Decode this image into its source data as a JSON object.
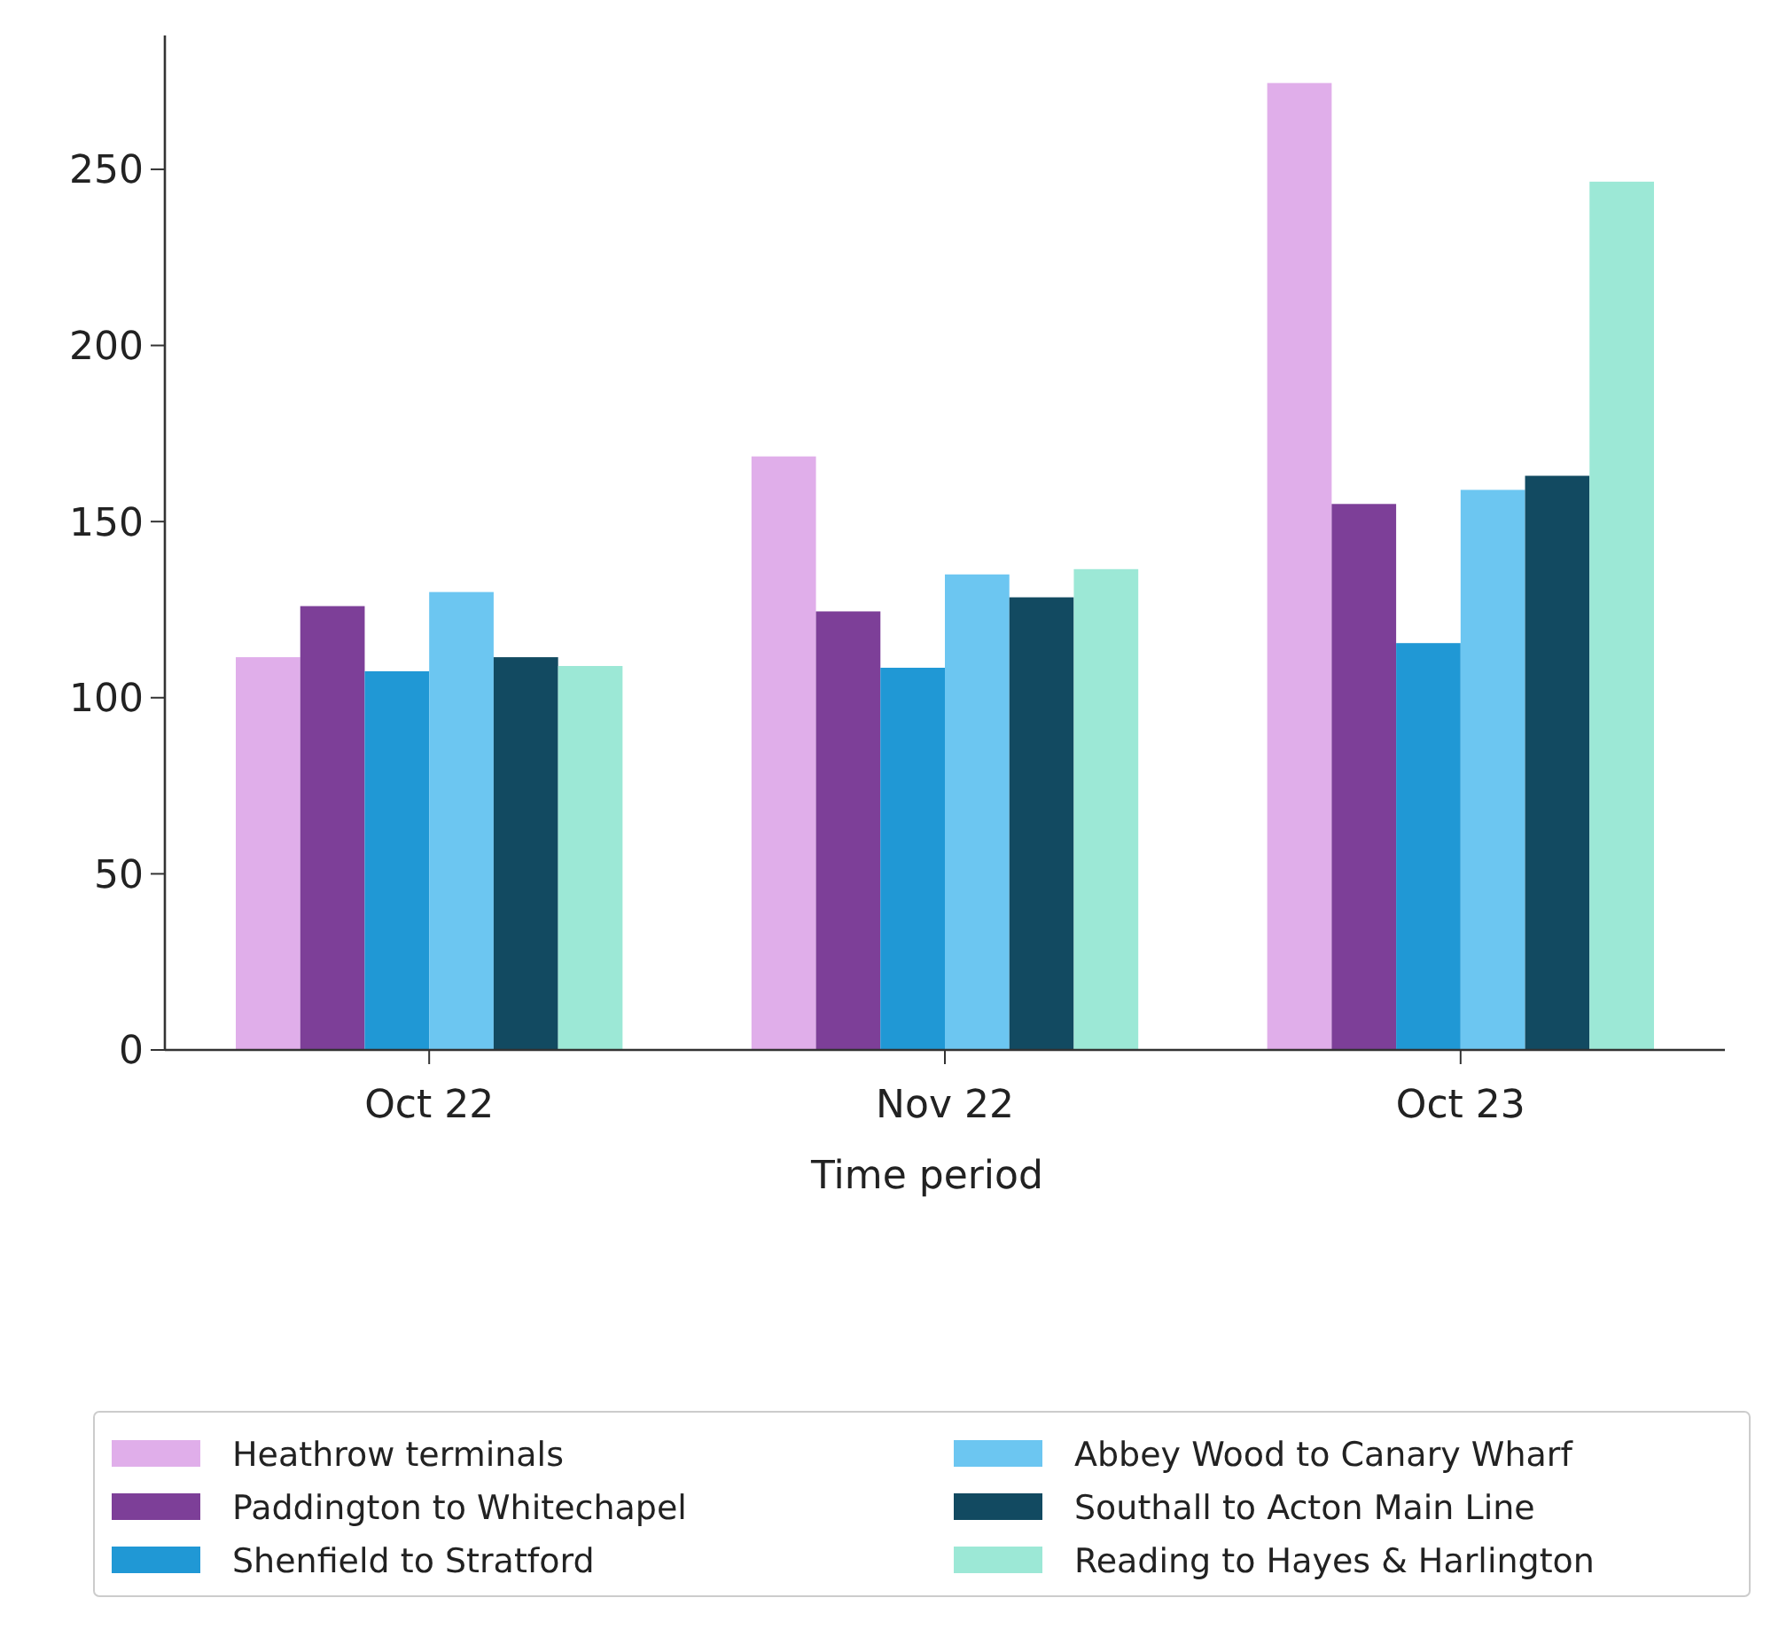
{
  "chart_data": {
    "type": "bar",
    "xlabel": "Time period",
    "categories": [
      "Oct 22",
      "Nov 22",
      "Oct 23"
    ],
    "series": [
      {
        "name": "Heathrow terminals",
        "color": "#e0aeea",
        "values": [
          111.5,
          168.5,
          274.5
        ]
      },
      {
        "name": "Paddington to Whitechapel",
        "color": "#7d3f98",
        "values": [
          126,
          124.5,
          155
        ]
      },
      {
        "name": "Shenfield to Stratford",
        "color": "#2098d5",
        "values": [
          107.5,
          108.5,
          115.5
        ]
      },
      {
        "name": "Abbey Wood to Canary Wharf",
        "color": "#6cc6f1",
        "values": [
          130,
          135,
          159
        ]
      },
      {
        "name": "Southall to Acton Main Line",
        "color": "#124a61",
        "values": [
          111.5,
          128.5,
          163
        ]
      },
      {
        "name": "Reading to Hayes & Harlington",
        "color": "#9ce8d6",
        "values": [
          109,
          136.5,
          246.5
        ]
      }
    ],
    "ylim": [
      0,
      288
    ],
    "yticks": [
      0,
      50,
      100,
      150,
      200,
      250
    ],
    "legend": "bottom"
  }
}
